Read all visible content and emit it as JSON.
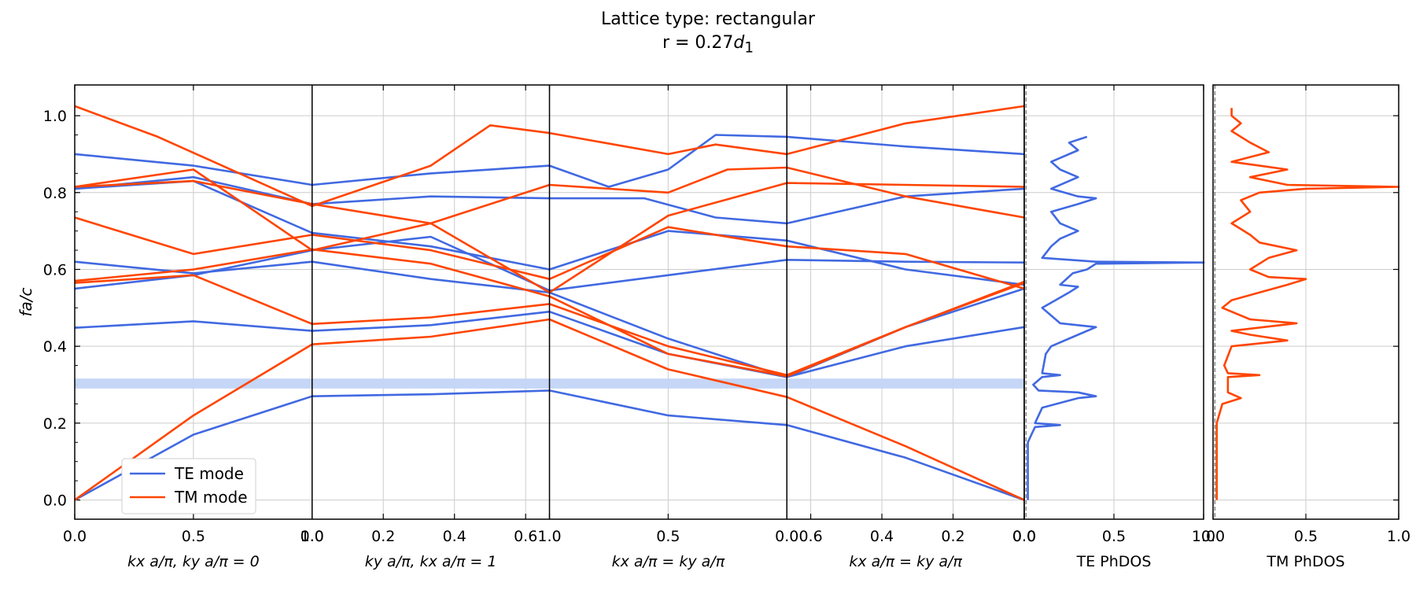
{
  "title": "Lattice type: rectangular",
  "subtitle_prefix": "r = 0.27",
  "subtitle_var": "d",
  "subtitle_sub": "1",
  "colors": {
    "TE": "#4169e1",
    "TM": "#ff4500",
    "gap": "#c2d4f7",
    "grid": "#cccccc"
  },
  "chart_data": [
    {
      "type": "line",
      "name": "band-structure",
      "ylabel": "fa/c",
      "ylim": [
        -0.05,
        1.08
      ],
      "yticks": [
        0.0,
        0.2,
        0.4,
        0.6,
        0.8,
        1.0
      ],
      "ytick_labels": [
        "0.0",
        "0.2",
        "0.4",
        "0.6",
        "0.8",
        "1.0"
      ],
      "grid": true,
      "legend": {
        "placement": "lower-left",
        "entries": [
          "TE mode",
          "TM mode"
        ]
      },
      "band_gap": {
        "ymin": 0.29,
        "ymax": 0.316
      },
      "segments": [
        {
          "xlabel": "k_x a/π, k_y a/π = 0",
          "xlim": [
            0,
            1
          ],
          "xticks": [
            0,
            0.5,
            1.0
          ],
          "xtick_labels": [
            "0.0",
            "0.5",
            "1.0"
          ]
        },
        {
          "xlabel": "k_y a/π, k_x a/π = 1",
          "xlim": [
            0,
            0.667
          ],
          "xticks": [
            0,
            0.2,
            0.4,
            0.6
          ],
          "xtick_labels": [
            "0.0",
            "0.2",
            "0.4",
            "0.6"
          ]
        },
        {
          "xlabel": "k_x a/π = k_y a/π",
          "xlim": [
            1,
            0
          ],
          "xticks": [
            1.0,
            0.5,
            0.0
          ],
          "xtick_labels": [
            "1.0",
            "0.5",
            "0.0"
          ]
        },
        {
          "xlabel": "k_x a/π = k_y a/π",
          "xlim": [
            0.667,
            0
          ],
          "xticks": [
            0.6,
            0.4,
            0.2,
            0.0
          ],
          "xtick_labels": [
            "0.6",
            "0.4",
            "0.2",
            "0.0"
          ]
        }
      ],
      "series": [
        {
          "name": "TE mode",
          "mode": "TE",
          "points": [
            [
              0,
              0
            ],
            [
              0.5,
              0.17
            ],
            [
              1,
              0.27
            ],
            [
              1.5,
              0.275
            ],
            [
              2,
              0.285
            ],
            [
              2.5,
              0.22
            ],
            [
              3,
              0.195
            ],
            [
              3.5,
              0.11
            ],
            [
              4,
              0
            ]
          ]
        },
        {
          "mode": "TE",
          "points": [
            [
              0,
              0.448
            ],
            [
              0.5,
              0.465
            ],
            [
              1,
              0.44
            ],
            [
              1.5,
              0.455
            ],
            [
              2,
              0.49
            ],
            [
              2.5,
              0.38
            ],
            [
              3,
              0.32
            ],
            [
              3.5,
              0.4
            ],
            [
              4,
              0.45
            ]
          ]
        },
        {
          "mode": "TE",
          "points": [
            [
              0,
              0.55
            ],
            [
              0.5,
              0.585
            ],
            [
              1,
              0.65
            ],
            [
              1.5,
              0.685
            ],
            [
              2,
              0.545
            ],
            [
              2.5,
              0.585
            ],
            [
              3,
              0.625
            ],
            [
              3.5,
              0.62
            ],
            [
              4,
              0.618
            ]
          ]
        },
        {
          "mode": "TE",
          "points": [
            [
              0,
              0.62
            ],
            [
              0.5,
              0.59
            ],
            [
              1,
              0.62
            ],
            [
              1.5,
              0.575
            ],
            [
              2,
              0.54
            ],
            [
              2.5,
              0.42
            ],
            [
              3,
              0.32
            ],
            [
              3.5,
              0.45
            ],
            [
              4,
              0.55
            ]
          ]
        },
        {
          "mode": "TE",
          "points": [
            [
              0,
              0.81
            ],
            [
              0.5,
              0.83
            ],
            [
              1,
              0.695
            ],
            [
              1.5,
              0.66
            ],
            [
              2,
              0.6
            ],
            [
              2.5,
              0.7
            ],
            [
              3,
              0.675
            ],
            [
              3.5,
              0.6
            ],
            [
              4,
              0.56
            ]
          ]
        },
        {
          "mode": "TE",
          "points": [
            [
              0,
              0.9
            ],
            [
              0.5,
              0.87
            ],
            [
              1,
              0.82
            ],
            [
              1.5,
              0.85
            ],
            [
              2,
              0.87
            ],
            [
              2.25,
              0.815
            ],
            [
              2.5,
              0.86
            ],
            [
              2.7,
              0.95
            ],
            [
              3,
              0.945
            ],
            [
              3.5,
              0.92
            ],
            [
              4,
              0.9
            ]
          ]
        },
        {
          "mode": "TE",
          "points": [
            [
              0,
              0.81
            ],
            [
              0.5,
              0.84
            ],
            [
              1,
              0.77
            ],
            [
              1.5,
              0.79
            ],
            [
              2,
              0.785
            ],
            [
              2.4,
              0.785
            ],
            [
              2.7,
              0.735
            ],
            [
              3,
              0.72
            ],
            [
              3.5,
              0.79
            ],
            [
              4,
              0.81
            ]
          ]
        },
        {
          "name": "TM mode",
          "mode": "TM",
          "points": [
            [
              0,
              0
            ],
            [
              0.5,
              0.22
            ],
            [
              1,
              0.405
            ],
            [
              1.5,
              0.425
            ],
            [
              2,
              0.47
            ],
            [
              2.5,
              0.34
            ],
            [
              3,
              0.268
            ],
            [
              3.5,
              0.14
            ],
            [
              4,
              0
            ]
          ]
        },
        {
          "mode": "TM",
          "points": [
            [
              0,
              0.565
            ],
            [
              0.5,
              0.585
            ],
            [
              1,
              0.458
            ],
            [
              1.5,
              0.475
            ],
            [
              2,
              0.51
            ],
            [
              2.5,
              0.4
            ],
            [
              3,
              0.325
            ],
            [
              3.5,
              0.45
            ],
            [
              4,
              0.568
            ]
          ]
        },
        {
          "mode": "TM",
          "points": [
            [
              0,
              0.57
            ],
            [
              0.5,
              0.6
            ],
            [
              1,
              0.652
            ],
            [
              1.5,
              0.615
            ],
            [
              2,
              0.53
            ],
            [
              2.5,
              0.38
            ],
            [
              3,
              0.322
            ],
            [
              3.5,
              0.45
            ],
            [
              4,
              0.565
            ]
          ]
        },
        {
          "mode": "TM",
          "points": [
            [
              0,
              0.735
            ],
            [
              0.5,
              0.64
            ],
            [
              1,
              0.69
            ],
            [
              1.5,
              0.65
            ],
            [
              2,
              0.575
            ],
            [
              2.5,
              0.71
            ],
            [
              3,
              0.66
            ],
            [
              3.5,
              0.64
            ],
            [
              4,
              0.55
            ]
          ]
        },
        {
          "mode": "TM",
          "points": [
            [
              0,
              0.815
            ],
            [
              0.5,
              0.86
            ],
            [
              1,
              0.65
            ],
            [
              1.5,
              0.72
            ],
            [
              2,
              0.82
            ],
            [
              2.5,
              0.8
            ],
            [
              2.75,
              0.86
            ],
            [
              3,
              0.865
            ],
            [
              3.5,
              0.79
            ],
            [
              4,
              0.735
            ]
          ]
        },
        {
          "mode": "TM",
          "points": [
            [
              0,
              0.815
            ],
            [
              0.5,
              0.83
            ],
            [
              1,
              0.77
            ],
            [
              1.5,
              0.72
            ],
            [
              2,
              0.54
            ],
            [
              2.5,
              0.74
            ],
            [
              3,
              0.825
            ],
            [
              3.5,
              0.82
            ],
            [
              4,
              0.815
            ]
          ]
        },
        {
          "mode": "TM",
          "points": [
            [
              0,
              1.025
            ],
            [
              0.35,
              0.945
            ],
            [
              1,
              0.765
            ],
            [
              1.5,
              0.87
            ],
            [
              1.75,
              0.975
            ],
            [
              2,
              0.955
            ],
            [
              2.5,
              0.9
            ],
            [
              2.7,
              0.925
            ],
            [
              3,
              0.9
            ],
            [
              3.5,
              0.98
            ],
            [
              4,
              1.025
            ]
          ]
        }
      ]
    },
    {
      "type": "line",
      "name": "te-phdos",
      "xlabel": "TE PhDOS",
      "xlim": [
        0,
        1.0
      ],
      "xticks": [
        0.0,
        0.5,
        1.0
      ],
      "xtick_labels": [
        "0.0",
        "0.5",
        "1.0"
      ],
      "reference_line_x": 0.01,
      "series": [
        {
          "mode": "TE",
          "points": [
            [
              0.02,
              0
            ],
            [
              0.02,
              0.15
            ],
            [
              0.04,
              0.17
            ],
            [
              0.06,
              0.19
            ],
            [
              0.2,
              0.195
            ],
            [
              0.06,
              0.2
            ],
            [
              0.1,
              0.24
            ],
            [
              0.3,
              0.265
            ],
            [
              0.4,
              0.27
            ],
            [
              0.3,
              0.28
            ],
            [
              0.08,
              0.285
            ],
            [
              0.05,
              0.3
            ],
            [
              0.1,
              0.32
            ],
            [
              0.2,
              0.325
            ],
            [
              0.1,
              0.33
            ],
            [
              0.12,
              0.38
            ],
            [
              0.15,
              0.4
            ],
            [
              0.3,
              0.43
            ],
            [
              0.4,
              0.45
            ],
            [
              0.2,
              0.46
            ],
            [
              0.1,
              0.5
            ],
            [
              0.25,
              0.54
            ],
            [
              0.3,
              0.555
            ],
            [
              0.2,
              0.56
            ],
            [
              0.27,
              0.59
            ],
            [
              0.35,
              0.6
            ],
            [
              0.4,
              0.615
            ],
            [
              1.0,
              0.618
            ],
            [
              0.4,
              0.62
            ],
            [
              0.1,
              0.63
            ],
            [
              0.15,
              0.66
            ],
            [
              0.2,
              0.68
            ],
            [
              0.3,
              0.7
            ],
            [
              0.2,
              0.72
            ],
            [
              0.15,
              0.75
            ],
            [
              0.3,
              0.77
            ],
            [
              0.4,
              0.785
            ],
            [
              0.3,
              0.79
            ],
            [
              0.15,
              0.81
            ],
            [
              0.3,
              0.84
            ],
            [
              0.2,
              0.86
            ],
            [
              0.15,
              0.88
            ],
            [
              0.3,
              0.91
            ],
            [
              0.25,
              0.93
            ],
            [
              0.35,
              0.945
            ]
          ]
        }
      ]
    },
    {
      "type": "line",
      "name": "tm-phdos",
      "xlabel": "TM PhDOS",
      "xlim": [
        0,
        1.0
      ],
      "xticks": [
        0.0,
        0.5,
        1.0
      ],
      "xtick_labels": [
        "0.0",
        "0.5",
        "1.0"
      ],
      "reference_line_x": 0.01,
      "series": [
        {
          "mode": "TM",
          "points": [
            [
              0.02,
              0
            ],
            [
              0.02,
              0.2
            ],
            [
              0.05,
              0.25
            ],
            [
              0.15,
              0.265
            ],
            [
              0.08,
              0.28
            ],
            [
              0.08,
              0.32
            ],
            [
              0.25,
              0.325
            ],
            [
              0.08,
              0.33
            ],
            [
              0.06,
              0.35
            ],
            [
              0.1,
              0.4
            ],
            [
              0.4,
              0.415
            ],
            [
              0.2,
              0.43
            ],
            [
              0.1,
              0.44
            ],
            [
              0.45,
              0.46
            ],
            [
              0.2,
              0.47
            ],
            [
              0.05,
              0.5
            ],
            [
              0.1,
              0.52
            ],
            [
              0.4,
              0.56
            ],
            [
              0.5,
              0.575
            ],
            [
              0.3,
              0.58
            ],
            [
              0.2,
              0.6
            ],
            [
              0.3,
              0.63
            ],
            [
              0.45,
              0.65
            ],
            [
              0.25,
              0.67
            ],
            [
              0.2,
              0.69
            ],
            [
              0.1,
              0.72
            ],
            [
              0.2,
              0.75
            ],
            [
              0.15,
              0.78
            ],
            [
              0.25,
              0.8
            ],
            [
              0.5,
              0.81
            ],
            [
              1.0,
              0.815
            ],
            [
              0.4,
              0.82
            ],
            [
              0.2,
              0.84
            ],
            [
              0.4,
              0.86
            ],
            [
              0.25,
              0.87
            ],
            [
              0.1,
              0.88
            ],
            [
              0.3,
              0.905
            ],
            [
              0.2,
              0.93
            ],
            [
              0.1,
              0.96
            ],
            [
              0.15,
              0.98
            ],
            [
              0.1,
              1.0
            ],
            [
              0.1,
              1.02
            ]
          ]
        }
      ]
    }
  ]
}
